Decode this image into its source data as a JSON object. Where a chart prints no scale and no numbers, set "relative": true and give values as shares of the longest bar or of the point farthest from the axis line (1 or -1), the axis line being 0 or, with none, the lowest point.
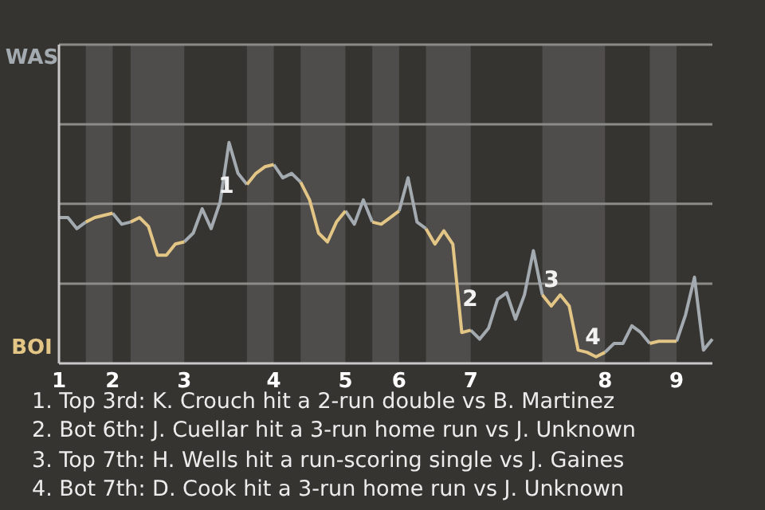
{
  "chart_data": {
    "type": "line",
    "relative": true,
    "categories": [
      "1",
      null,
      null,
      null,
      null,
      null,
      "2",
      null,
      null,
      null,
      null,
      null,
      null,
      null,
      "3",
      null,
      null,
      null,
      null,
      null,
      null,
      null,
      null,
      null,
      "4",
      null,
      null,
      null,
      null,
      null,
      null,
      null,
      "5",
      null,
      null,
      null,
      null,
      null,
      "6",
      null,
      null,
      null,
      null,
      null,
      null,
      null,
      "7",
      null,
      null,
      null,
      null,
      null,
      null,
      null,
      null,
      null,
      null,
      null,
      null,
      null,
      null,
      "8",
      null,
      null,
      null,
      null,
      null,
      null,
      null,
      "9",
      null,
      null,
      null,
      null
    ],
    "marker": "none",
    "line_style": "solid",
    "series": [
      {
        "color": "#a3aab0",
        "values": [
          0.66,
          0.66,
          0.61,
          0.64,
          null,
          null,
          0.68,
          0.63,
          0.64,
          null,
          null,
          null,
          null,
          null,
          0.55,
          0.59,
          0.7,
          0.61,
          0.73,
          1,
          0.86,
          0.81,
          null,
          null,
          0.9,
          0.84,
          0.86,
          0.82,
          null,
          null,
          null,
          null,
          0.69,
          0.63,
          0.74,
          0.64,
          null,
          null,
          0.69,
          0.84,
          0.64,
          0.61,
          null,
          null,
          null,
          null,
          0.15,
          0.11,
          0.16,
          0.29,
          0.32,
          0.2,
          0.31,
          0.51,
          0.31,
          null,
          null,
          null,
          null,
          null,
          null,
          0.05,
          0.09,
          0.09,
          0.17,
          0.14,
          0.09,
          null,
          null,
          0.1,
          0.22,
          0.39,
          0.06,
          0.11
        ]
      },
      {
        "color": "#e3c585",
        "values": [
          null,
          null,
          null,
          0.64,
          0.66,
          0.67,
          0.68,
          null,
          0.64,
          0.66,
          0.62,
          0.49,
          0.49,
          0.54,
          0.55,
          null,
          null,
          null,
          null,
          null,
          null,
          0.81,
          0.86,
          0.89,
          0.9,
          null,
          null,
          0.82,
          0.74,
          0.59,
          0.55,
          0.64,
          0.69,
          null,
          null,
          0.64,
          0.63,
          0.66,
          0.69,
          null,
          null,
          0.61,
          0.54,
          0.6,
          0.54,
          0.14,
          0.15,
          null,
          null,
          null,
          null,
          null,
          null,
          null,
          0.31,
          0.26,
          0.31,
          0.26,
          0.06,
          0.05,
          0.03,
          0.05,
          null,
          null,
          null,
          null,
          0.09,
          0.1,
          0.1,
          0.1,
          null,
          null,
          null,
          null
        ]
      }
    ],
    "ref_lines": [
      {
        "axis": "y",
        "value": 0.361,
        "color": "#8c8b88"
      },
      {
        "axis": "y",
        "value": 0.722,
        "color": "#8c8b88"
      },
      {
        "axis": "y",
        "value": 1.082,
        "color": "#8c8b88"
      },
      {
        "axis": "y",
        "value": 1.443,
        "color": "#8c8b88"
      }
    ],
    "annotations": [
      "WAS",
      "BOI",
      "1",
      "2",
      "3",
      "4",
      "1. Top 3rd: K. Crouch hit a 2-run double vs B. Martinez",
      "2. Bot 6th: J. Cuellar hit a 3-run home run vs J. Unknown",
      "3. Top 7th: H. Wells hit a run-scoring single vs J. Gaines",
      "4. Bot 7th: D. Cook hit a 3-run home run vs J. Unknown"
    ]
  }
}
